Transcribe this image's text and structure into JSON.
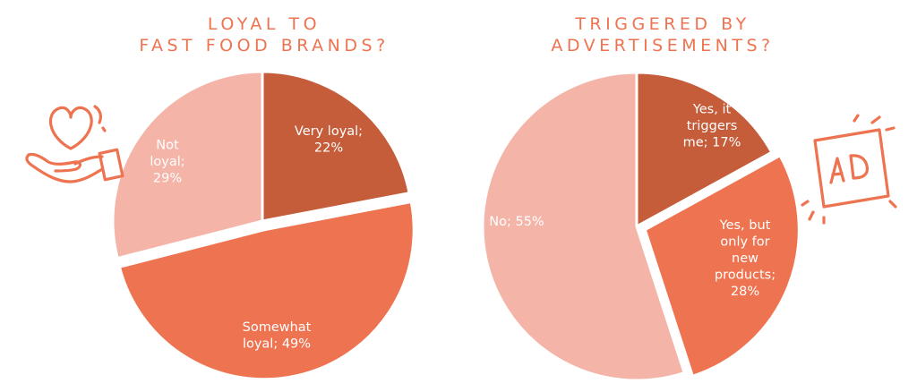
{
  "colors": {
    "dark": "#c55c3a",
    "medium": "#ee7350",
    "light": "#f4b4a8",
    "title": "#ee7350",
    "icon": "#ee7350"
  },
  "icons": {
    "left": "heart-in-hand-icon",
    "right": "ad-screen-icon"
  },
  "chart_data": [
    {
      "type": "pie",
      "title_lines": [
        "LOYAL TO",
        "FAST FOOD BRANDS?"
      ],
      "slices": [
        {
          "label_lines": [
            "Very loyal;",
            "22%"
          ],
          "value": 22,
          "color": "dark",
          "exploded": false
        },
        {
          "label_lines": [
            "Somewhat",
            "loyal; 49%"
          ],
          "value": 49,
          "color": "medium",
          "exploded": true
        },
        {
          "label_lines": [
            "Not",
            "loyal;",
            "29%"
          ],
          "value": 29,
          "color": "light",
          "exploded": false
        }
      ]
    },
    {
      "type": "pie",
      "title_lines": [
        "TRIGGERED BY",
        "ADVERTISEMENTS?"
      ],
      "slices": [
        {
          "label_lines": [
            "Yes, it",
            "triggers",
            "me; 17%"
          ],
          "value": 17,
          "color": "dark",
          "exploded": false
        },
        {
          "label_lines": [
            "Yes, but",
            "only for",
            "new",
            "products;",
            "28%"
          ],
          "value": 28,
          "color": "medium",
          "exploded": true
        },
        {
          "label_lines": [
            "No; 55%"
          ],
          "value": 55,
          "color": "light",
          "exploded": false
        }
      ]
    }
  ]
}
